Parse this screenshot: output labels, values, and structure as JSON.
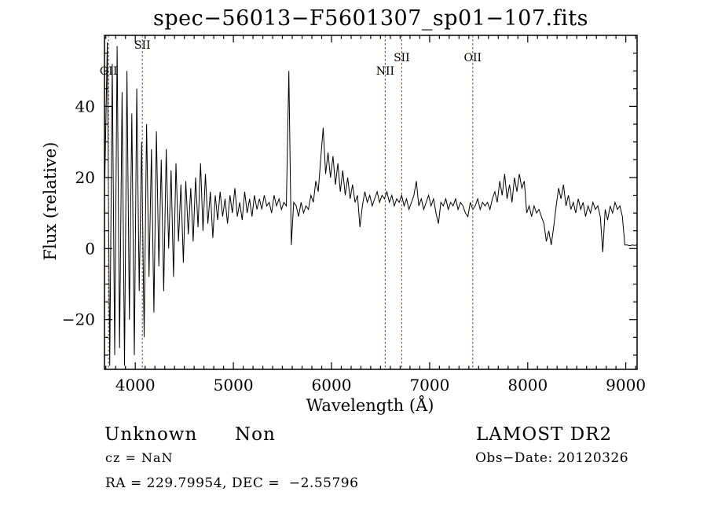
{
  "title": "spec−56013−F5601307_sp01−107.fits",
  "axis": {
    "xlabel": "Wavelength (Å)",
    "ylabel": "Flux (relative)"
  },
  "footer": {
    "classification": "Unknown",
    "subclass": "Non",
    "cz": "cz = NaN",
    "ra_dec": "RA = 229.79954, DEC =  −2.55796",
    "survey": "LAMOST DR2",
    "obs_date": "Obs−Date: 20120326"
  },
  "chart_data": {
    "type": "line",
    "title": "spec−56013−F5601307_sp01−107.fits",
    "xlabel": "Wavelength (Å)",
    "ylabel": "Flux (relative)",
    "xlim": [
      3686,
      9115
    ],
    "ylim": [
      -34,
      60
    ],
    "grid": false,
    "line_color": "#000000",
    "marker_line_color": "#7a3b3b",
    "x_ticks": {
      "values": [
        4000,
        5000,
        6000,
        7000,
        8000,
        9000
      ],
      "labels": [
        "4000",
        "5000",
        "6000",
        "7000",
        "8000",
        "9000"
      ],
      "minor_step": 100
    },
    "y_ticks": {
      "values": [
        -20,
        0,
        20,
        40
      ],
      "labels": [
        "−20",
        "0",
        "20",
        "40"
      ],
      "minor_step": 5
    },
    "marker_lines": [
      {
        "label": "OII",
        "wavelength": 3727,
        "row": 2
      },
      {
        "label": "SII",
        "wavelength": 4072,
        "row": 0
      },
      {
        "label": "NII",
        "wavelength": 6548,
        "row": 2
      },
      {
        "label": "SII",
        "wavelength": 6716,
        "row": 1
      },
      {
        "label": "OII",
        "wavelength": 7440,
        "row": 1
      }
    ],
    "series": {
      "name": "flux",
      "lambda_start": 3690,
      "lambda_step": 25,
      "flux": [
        20,
        58,
        -33,
        52,
        -30,
        57,
        -28,
        44,
        -33,
        50,
        -20,
        38,
        -30,
        45,
        -12,
        30,
        -25,
        35,
        -8,
        28,
        -18,
        33,
        -5,
        25,
        -12,
        28,
        0,
        22,
        -8,
        24,
        2,
        18,
        -4,
        19,
        4,
        17,
        2,
        20,
        6,
        24,
        5,
        21,
        7,
        16,
        3,
        15,
        8,
        16,
        9,
        14,
        7,
        15,
        10,
        17,
        9,
        13,
        8,
        16,
        10,
        14,
        9,
        15,
        11,
        14,
        11,
        15,
        12,
        13,
        10,
        15,
        12,
        14,
        11,
        13,
        12,
        50,
        1,
        13,
        12,
        9,
        13,
        10,
        12,
        11,
        15,
        13,
        19,
        16,
        25,
        34,
        21,
        27,
        20,
        26,
        18,
        24,
        16,
        22,
        15,
        20,
        14,
        18,
        13,
        15,
        6,
        12,
        16,
        13,
        15,
        12,
        14,
        16,
        13,
        15,
        14,
        16,
        13,
        15,
        12,
        14,
        13,
        15,
        12,
        14,
        11,
        13,
        15,
        19,
        12,
        14,
        11,
        13,
        15,
        12,
        14,
        10,
        7,
        13,
        12,
        14,
        11,
        13,
        12,
        14,
        11,
        13,
        12,
        10,
        9,
        13,
        11,
        12,
        14,
        11,
        13,
        12,
        13,
        11,
        14,
        16,
        13,
        19,
        15,
        21,
        14,
        18,
        13,
        20,
        16,
        21,
        17,
        19,
        10,
        12,
        9,
        12,
        10,
        11,
        9,
        7,
        2,
        5,
        1,
        6,
        12,
        17,
        14,
        18,
        12,
        15,
        11,
        13,
        10,
        14,
        11,
        13,
        9,
        12,
        10,
        13,
        11,
        12,
        9,
        -1,
        11,
        8,
        12,
        10,
        13,
        11,
        12,
        9,
        1,
        1,
        0.8,
        1,
        0.9,
        1
      ]
    }
  }
}
